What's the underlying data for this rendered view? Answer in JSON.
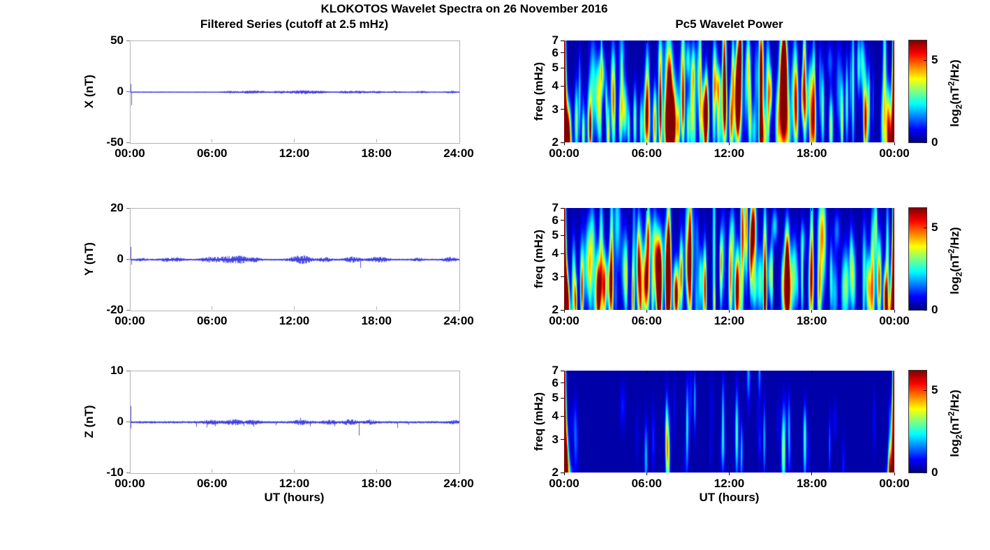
{
  "title": "KLOKOTOS Wavelet Spectra on 26 November 2016",
  "left_column_title": "Filtered Series (cutoff at 2.5 mHz)",
  "right_column_title": "Pc5 Wavelet Power",
  "x_axis_label": "UT (hours)",
  "colorbar_label": {
    "p1": "log",
    "sub1": "2",
    "p2": "(nT",
    "sup1": "2",
    "p3": "/Hz)"
  },
  "colors": {
    "trace_blue": "#2828e1",
    "frame_gray": "#b4b4b4",
    "text": "#000000",
    "background": "#ffffff"
  },
  "chart_data": [
    {
      "type": "line",
      "panel": "X filtered series",
      "ylabel": "X (nT)",
      "ylim": [
        -50,
        50
      ],
      "yticks": [
        "50",
        "0",
        "-50"
      ],
      "xtick_labels": [
        "00:00",
        "06:00",
        "12:00",
        "18:00",
        "24:00"
      ],
      "x_range_hours": [
        0,
        24
      ],
      "line": {
        "base_amp": 0.5,
        "seed": 11,
        "bursts": [
          [
            7.3,
            0.7,
            0.4
          ],
          [
            8.6,
            0.9,
            0.35
          ],
          [
            9.4,
            1.0,
            0.4
          ],
          [
            10.9,
            0.8,
            0.35
          ],
          [
            12.2,
            1.2,
            0.45
          ],
          [
            13.0,
            1.1,
            0.4
          ],
          [
            13.9,
            0.8,
            0.35
          ],
          [
            15.8,
            1.1,
            0.4
          ],
          [
            16.8,
            0.8,
            0.3
          ],
          [
            17.9,
            0.9,
            0.35
          ],
          [
            19.3,
            0.6,
            0.3
          ],
          [
            21.3,
            0.7,
            0.35
          ],
          [
            23.4,
            0.8,
            0.3
          ]
        ],
        "spikes": [
          [
            0.05,
            8
          ],
          [
            0.08,
            -13
          ]
        ]
      }
    },
    {
      "type": "heatmap",
      "panel": "X wavelet power",
      "ylabel": "freq (mHz)",
      "f_mhz": [
        2,
        7
      ],
      "yticks": [
        "7",
        "6",
        "5",
        "4",
        "3",
        "2"
      ],
      "xtick_labels": [
        "00:00",
        "06:00",
        "12:00",
        "18:00",
        "00:00"
      ],
      "clim": [
        0,
        6.2
      ],
      "colorbar_ticks": [
        {
          "label": "5",
          "value": 5
        },
        {
          "label": "0",
          "value": 0
        }
      ],
      "edge": {
        "amp": 8,
        "w0": 0.08,
        "k": 0.3,
        "p": 1.8
      },
      "texture": {
        "seed": 21,
        "count": 85,
        "amp": [
          1.0,
          2.8
        ],
        "st": [
          0.04,
          0.18
        ],
        "sf": [
          0.15,
          0.4
        ],
        "f": [
          2,
          6
        ]
      },
      "events": [
        [
          0.3,
          2.3,
          0.15,
          0.22,
          4.5
        ],
        [
          0.9,
          2.6,
          0.1,
          0.3,
          3.0
        ],
        [
          1.4,
          2.2,
          0.08,
          0.18,
          2.4
        ],
        [
          1.9,
          2.7,
          0.1,
          0.28,
          3.0
        ],
        [
          2.6,
          2.9,
          0.1,
          0.32,
          3.1
        ],
        [
          3.2,
          2.4,
          0.09,
          0.25,
          2.8
        ],
        [
          3.6,
          3.1,
          0.1,
          0.4,
          3.2
        ],
        [
          4.1,
          2.5,
          0.09,
          0.25,
          2.6
        ],
        [
          4.7,
          2.3,
          0.07,
          0.2,
          2.3
        ],
        [
          5.15,
          2.6,
          0.09,
          0.28,
          2.9
        ],
        [
          5.6,
          2.4,
          0.08,
          0.25,
          2.6
        ],
        [
          6.0,
          2.6,
          0.16,
          0.3,
          4.9
        ],
        [
          6.05,
          4.0,
          0.1,
          0.35,
          3.0
        ],
        [
          6.6,
          2.5,
          0.1,
          0.3,
          4.4
        ],
        [
          7.0,
          3.0,
          0.08,
          0.45,
          3.6
        ],
        [
          7.7,
          2.7,
          0.28,
          0.32,
          5.8
        ],
        [
          7.75,
          2.3,
          0.16,
          0.2,
          7.0
        ],
        [
          7.7,
          4.3,
          0.15,
          0.3,
          3.4
        ],
        [
          8.3,
          2.4,
          0.08,
          0.2,
          3.0
        ],
        [
          8.65,
          4.8,
          0.1,
          0.45,
          3.4
        ],
        [
          8.65,
          2.8,
          0.08,
          0.3,
          3.0
        ],
        [
          9.3,
          2.9,
          0.1,
          0.35,
          3.0
        ],
        [
          9.9,
          4.0,
          0.07,
          0.6,
          2.8
        ],
        [
          10.45,
          2.6,
          0.08,
          0.25,
          2.6
        ],
        [
          10.9,
          3.2,
          0.09,
          0.45,
          3.0
        ],
        [
          11.2,
          2.8,
          0.08,
          0.35,
          3.0
        ],
        [
          11.65,
          5.5,
          0.1,
          0.5,
          4.2
        ],
        [
          11.65,
          3.3,
          0.1,
          0.4,
          4.0
        ],
        [
          12.15,
          2.6,
          0.1,
          0.3,
          4.6
        ],
        [
          12.6,
          3.3,
          0.2,
          0.35,
          6.0
        ],
        [
          12.7,
          5.0,
          0.12,
          0.45,
          4.4
        ],
        [
          12.85,
          6.5,
          0.08,
          0.3,
          4.2
        ],
        [
          13.5,
          2.7,
          0.08,
          0.3,
          2.8
        ],
        [
          14.3,
          3.5,
          0.09,
          0.55,
          5.2
        ],
        [
          14.3,
          2.2,
          0.08,
          0.2,
          4.6
        ],
        [
          14.85,
          3.0,
          0.07,
          0.3,
          2.6
        ],
        [
          15.95,
          2.8,
          0.25,
          0.35,
          6.5
        ],
        [
          15.95,
          4.6,
          0.14,
          0.35,
          4.6
        ],
        [
          16.0,
          6.0,
          0.1,
          0.35,
          3.2
        ],
        [
          16.85,
          3.0,
          0.12,
          0.35,
          5.0
        ],
        [
          17.5,
          4.0,
          0.08,
          0.6,
          3.2
        ],
        [
          18.1,
          2.5,
          0.14,
          0.3,
          4.8
        ],
        [
          18.15,
          4.0,
          0.08,
          0.4,
          3.0
        ],
        [
          18.8,
          3.0,
          0.08,
          0.35,
          2.8
        ],
        [
          19.4,
          2.4,
          0.1,
          0.28,
          3.4
        ],
        [
          20.2,
          2.8,
          0.09,
          0.3,
          2.8
        ],
        [
          20.55,
          3.3,
          0.08,
          0.35,
          2.6
        ],
        [
          21.0,
          4.0,
          0.07,
          0.55,
          2.8
        ],
        [
          21.9,
          2.8,
          0.09,
          0.3,
          2.7
        ],
        [
          22.15,
          3.3,
          0.07,
          0.3,
          2.4
        ],
        [
          23.3,
          4.5,
          0.09,
          0.6,
          3.0
        ],
        [
          23.55,
          2.5,
          0.12,
          0.3,
          4.8
        ]
      ]
    },
    {
      "type": "line",
      "panel": "Y filtered series",
      "ylabel": "Y (nT)",
      "ylim": [
        -20,
        20
      ],
      "yticks": [
        "20",
        "0",
        "-20"
      ],
      "xtick_labels": [
        "00:00",
        "06:00",
        "12:00",
        "18:00",
        "24:00"
      ],
      "x_range_hours": [
        0,
        24
      ],
      "line": {
        "base_amp": 0.35,
        "seed": 22,
        "bursts": [
          [
            0.8,
            0.4,
            0.25
          ],
          [
            2.6,
            0.5,
            0.3
          ],
          [
            3.4,
            0.55,
            0.3
          ],
          [
            5.8,
            0.8,
            0.45
          ],
          [
            6.9,
            0.9,
            0.4
          ],
          [
            7.7,
            0.85,
            0.4
          ],
          [
            8.2,
            0.8,
            0.35
          ],
          [
            9.1,
            0.7,
            0.3
          ],
          [
            12.2,
            1.1,
            0.45
          ],
          [
            12.8,
            0.8,
            0.35
          ],
          [
            14.2,
            0.7,
            0.3
          ],
          [
            16.2,
            0.9,
            0.4
          ],
          [
            17.9,
            0.75,
            0.35
          ],
          [
            18.5,
            0.5,
            0.3
          ],
          [
            21.0,
            0.45,
            0.3
          ],
          [
            23.3,
            0.7,
            0.3
          ]
        ],
        "spikes": [
          [
            0.03,
            5
          ],
          [
            0.06,
            -2
          ],
          [
            16.8,
            -3.2
          ]
        ]
      }
    },
    {
      "type": "heatmap",
      "panel": "Y wavelet power",
      "ylabel": "freq (mHz)",
      "f_mhz": [
        2,
        7
      ],
      "yticks": [
        "7",
        "6",
        "5",
        "4",
        "3",
        "2"
      ],
      "xtick_labels": [
        "00:00",
        "06:00",
        "12:00",
        "18:00",
        "00:00"
      ],
      "clim": [
        0,
        6.2
      ],
      "colorbar_ticks": [
        {
          "label": "5",
          "value": 5
        },
        {
          "label": "0",
          "value": 0
        }
      ],
      "edge": {
        "amp": 8,
        "w0": 0.08,
        "k": 0.3,
        "p": 1.8
      },
      "texture": {
        "seed": 77,
        "count": 80,
        "amp": [
          1.0,
          2.7
        ],
        "st": [
          0.04,
          0.18
        ],
        "sf": [
          0.15,
          0.4
        ],
        "f": [
          2,
          6
        ]
      },
      "events": [
        [
          0.15,
          2.2,
          0.12,
          0.2,
          6.5
        ],
        [
          0.7,
          2.7,
          0.1,
          0.35,
          3.4
        ],
        [
          0.85,
          2.2,
          0.07,
          0.2,
          4.2
        ],
        [
          1.3,
          2.5,
          0.08,
          0.3,
          2.6
        ],
        [
          2.5,
          2.5,
          0.12,
          0.3,
          5.0
        ],
        [
          2.9,
          2.6,
          0.1,
          0.3,
          4.8
        ],
        [
          2.7,
          4.5,
          0.1,
          0.4,
          2.8
        ],
        [
          3.4,
          2.6,
          0.12,
          0.35,
          4.6
        ],
        [
          3.45,
          4.5,
          0.08,
          0.5,
          3.0
        ],
        [
          4.5,
          2.8,
          0.08,
          0.3,
          2.2
        ],
        [
          5.5,
          3.0,
          0.14,
          0.4,
          5.0
        ],
        [
          5.95,
          2.8,
          0.16,
          0.3,
          5.8
        ],
        [
          6.1,
          4.8,
          0.1,
          0.4,
          3.2
        ],
        [
          6.9,
          3.2,
          0.18,
          0.3,
          6.6
        ],
        [
          6.9,
          2.3,
          0.1,
          0.2,
          5.4
        ],
        [
          7.6,
          2.6,
          0.12,
          0.3,
          5.6
        ],
        [
          7.6,
          5.0,
          0.1,
          0.5,
          3.4
        ],
        [
          8.15,
          2.4,
          0.14,
          0.25,
          6.4
        ],
        [
          8.5,
          3.0,
          0.08,
          0.3,
          3.4
        ],
        [
          9.15,
          3.2,
          0.1,
          0.45,
          5.6
        ],
        [
          9.15,
          5.5,
          0.08,
          0.4,
          3.0
        ],
        [
          10.2,
          2.8,
          0.08,
          0.35,
          2.8
        ],
        [
          10.9,
          4.0,
          0.08,
          0.8,
          2.6
        ],
        [
          11.4,
          3.0,
          0.07,
          0.3,
          2.6
        ],
        [
          12.1,
          3.0,
          0.1,
          0.4,
          4.6
        ],
        [
          12.55,
          2.5,
          0.12,
          0.3,
          5.2
        ],
        [
          12.95,
          5.5,
          0.09,
          0.55,
          4.4
        ],
        [
          13.25,
          6.2,
          0.07,
          0.5,
          4.0
        ],
        [
          14.6,
          3.2,
          0.09,
          0.5,
          5.4
        ],
        [
          14.6,
          2.3,
          0.07,
          0.2,
          4.4
        ],
        [
          15.1,
          3.0,
          0.07,
          0.3,
          2.6
        ],
        [
          16.2,
          2.5,
          0.22,
          0.3,
          6.6
        ],
        [
          16.2,
          3.8,
          0.12,
          0.3,
          4.6
        ],
        [
          17.3,
          3.0,
          0.07,
          0.35,
          2.8
        ],
        [
          17.95,
          2.7,
          0.12,
          0.35,
          5.0
        ],
        [
          18.0,
          4.8,
          0.08,
          0.4,
          3.0
        ],
        [
          18.55,
          2.6,
          0.1,
          0.35,
          4.0
        ],
        [
          19.4,
          3.0,
          0.08,
          0.3,
          2.2
        ],
        [
          20.5,
          2.7,
          0.16,
          0.3,
          3.0
        ],
        [
          21.0,
          2.9,
          0.14,
          0.3,
          3.0
        ],
        [
          22.4,
          3.2,
          0.09,
          0.45,
          3.0
        ],
        [
          22.9,
          2.6,
          0.1,
          0.3,
          3.6
        ],
        [
          23.35,
          2.3,
          0.1,
          0.25,
          5.0
        ],
        [
          23.5,
          3.5,
          0.08,
          0.5,
          3.2
        ]
      ]
    },
    {
      "type": "line",
      "panel": "Z filtered series",
      "ylabel": "Z (nT)",
      "ylim": [
        -10,
        10
      ],
      "yticks": [
        "10",
        "0",
        "-10"
      ],
      "xtick_labels": [
        "00:00",
        "06:00",
        "12:00",
        "18:00",
        "24:00"
      ],
      "x_range_hours": [
        0,
        24
      ],
      "line": {
        "base_amp": 0.22,
        "seed": 33,
        "bursts": [
          [
            5.9,
            0.3,
            0.4
          ],
          [
            7.5,
            0.45,
            0.4
          ],
          [
            8.9,
            0.3,
            0.35
          ],
          [
            12.5,
            0.35,
            0.4
          ],
          [
            14.5,
            0.3,
            0.35
          ],
          [
            16.0,
            0.4,
            0.35
          ],
          [
            17.5,
            0.3,
            0.3
          ],
          [
            23.6,
            0.25,
            0.25
          ]
        ],
        "spikes": [
          [
            0.03,
            3.2
          ],
          [
            0.05,
            -1.2
          ],
          [
            4.8,
            -0.9
          ],
          [
            5.6,
            -1.0
          ],
          [
            6.2,
            -0.8
          ],
          [
            8.3,
            -0.7
          ],
          [
            9.0,
            -0.9
          ],
          [
            10.6,
            -0.6
          ],
          [
            12.4,
            0.9
          ],
          [
            13.1,
            -0.8
          ],
          [
            14.9,
            -0.8
          ],
          [
            16.7,
            -2.6
          ],
          [
            19.5,
            -1.1
          ],
          [
            20.3,
            -0.5
          ]
        ]
      }
    },
    {
      "type": "heatmap",
      "panel": "Z wavelet power",
      "ylabel": "freq (mHz)",
      "f_mhz": [
        2,
        7
      ],
      "yticks": [
        "7",
        "6",
        "5",
        "4",
        "3",
        "2"
      ],
      "xtick_labels": [
        "00:00",
        "06:00",
        "12:00",
        "18:00",
        "00:00"
      ],
      "clim": [
        0,
        6.2
      ],
      "colorbar_ticks": [
        {
          "label": "5",
          "value": 5
        },
        {
          "label": "0",
          "value": 0
        }
      ],
      "edge": {
        "amp": 8,
        "w0": 0.08,
        "k": 0.3,
        "p": 1.8
      },
      "texture": {
        "seed": 55,
        "count": 25,
        "amp": [
          0.3,
          0.8
        ],
        "st": [
          0.05,
          0.15
        ],
        "sf": [
          0.15,
          0.3
        ],
        "f": [
          2,
          5
        ]
      },
      "events": [
        [
          0.15,
          2.1,
          0.07,
          0.18,
          5.5
        ],
        [
          5.95,
          2.4,
          0.08,
          0.28,
          1.8
        ],
        [
          7.55,
          2.5,
          0.1,
          0.3,
          3.6
        ],
        [
          7.45,
          3.3,
          0.07,
          0.3,
          2.4
        ],
        [
          8.95,
          3.5,
          0.07,
          0.35,
          2.2
        ],
        [
          9.5,
          4.8,
          0.05,
          0.25,
          1.8
        ],
        [
          11.55,
          3.7,
          0.07,
          0.35,
          2.0
        ],
        [
          12.55,
          3.2,
          0.08,
          0.35,
          2.6
        ],
        [
          12.9,
          2.6,
          0.06,
          0.25,
          1.8
        ],
        [
          13.4,
          6.8,
          0.09,
          0.25,
          1.6
        ],
        [
          14.2,
          6.9,
          0.07,
          0.2,
          1.4
        ],
        [
          14.55,
          3.0,
          0.06,
          0.3,
          1.7
        ],
        [
          15.95,
          2.6,
          0.1,
          0.32,
          3.4
        ],
        [
          16.35,
          3.2,
          0.06,
          0.3,
          1.8
        ],
        [
          17.5,
          2.8,
          0.08,
          0.3,
          2.4
        ],
        [
          19.3,
          2.8,
          0.05,
          0.25,
          1.2
        ],
        [
          23.65,
          2.2,
          0.07,
          0.2,
          2.6
        ]
      ]
    }
  ]
}
